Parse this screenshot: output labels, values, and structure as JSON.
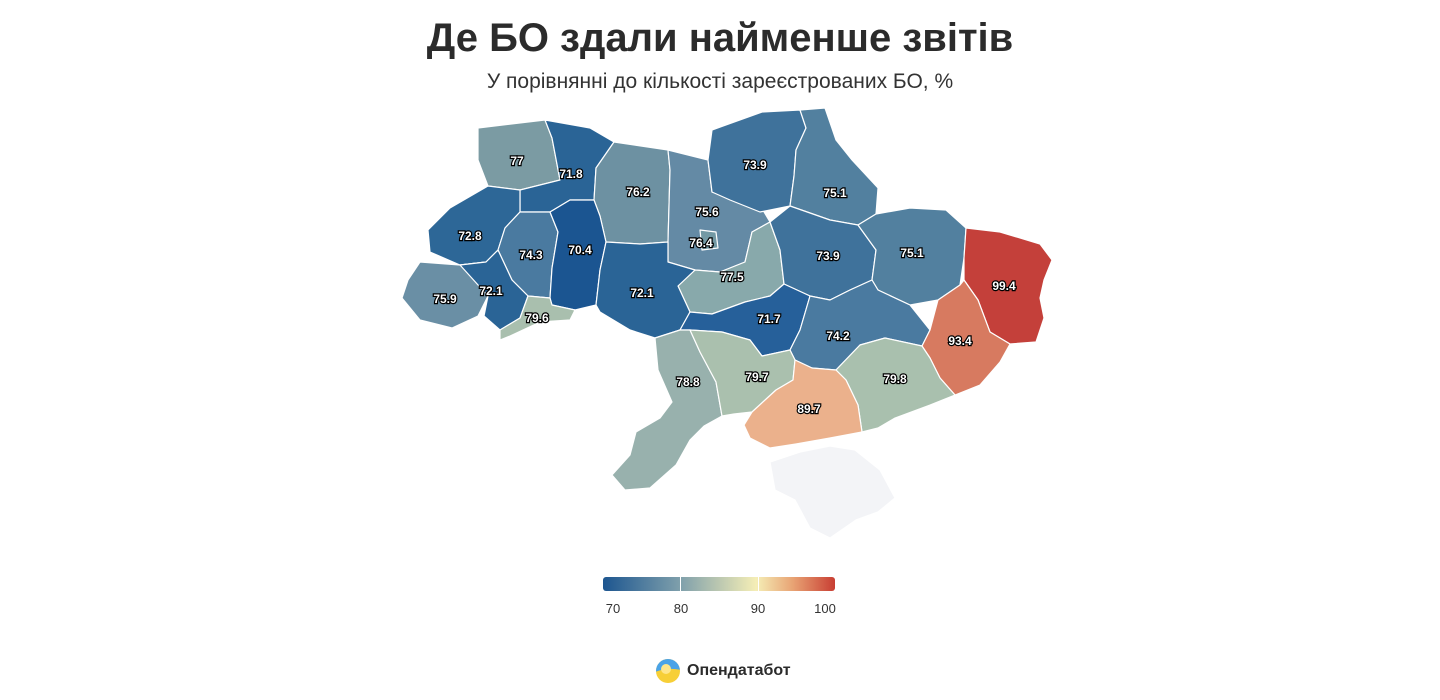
{
  "title": "Де БО здали найменше звітів",
  "subtitle": "У порівнянні до кількості зареєстрованих БО, %",
  "brand": {
    "name": "Опендатабот",
    "logo_icon": "opendatabot-logo-icon"
  },
  "legend": {
    "min": 70,
    "max": 100,
    "ticks": [
      "70",
      "80",
      "90",
      "100"
    ],
    "colors": [
      "#1d5690",
      "#7e9fab",
      "#f5eeb6",
      "#e8a273",
      "#c83e33"
    ]
  },
  "regions": [
    {
      "id": "volyn",
      "value": "77",
      "color": "#7b9ba3"
    },
    {
      "id": "rivne",
      "value": "71.8",
      "color": "#2a6496"
    },
    {
      "id": "zhytomyr",
      "value": "76.2",
      "color": "#6d91a2"
    },
    {
      "id": "kyiv-obl",
      "value": "75.6",
      "color": "#648aa5"
    },
    {
      "id": "kyiv-city",
      "value": "76.4",
      "color": "#7399a4"
    },
    {
      "id": "chernihiv",
      "value": "73.9",
      "color": "#3f729b"
    },
    {
      "id": "sumy",
      "value": "75.1",
      "color": "#52809f"
    },
    {
      "id": "lviv",
      "value": "72.8",
      "color": "#2d6797"
    },
    {
      "id": "ternopil",
      "value": "74.3",
      "color": "#4a7aa0"
    },
    {
      "id": "khmelnytskyi",
      "value": "70.4",
      "color": "#1b5591"
    },
    {
      "id": "cherkasy",
      "value": "77.5",
      "color": "#88a9ab"
    },
    {
      "id": "poltava",
      "value": "73.9",
      "color": "#3f729b"
    },
    {
      "id": "kharkiv",
      "value": "75.1",
      "color": "#52809f"
    },
    {
      "id": "luhansk",
      "value": "99.4",
      "color": "#c4403a"
    },
    {
      "id": "zakarpattia",
      "value": "75.9",
      "color": "#6a8fa5"
    },
    {
      "id": "ivano-frankivsk",
      "value": "72.1",
      "color": "#2a6496"
    },
    {
      "id": "chernivtsi",
      "value": "79.6",
      "color": "#a9bfae"
    },
    {
      "id": "vinnytsia",
      "value": "72.1",
      "color": "#2a6496"
    },
    {
      "id": "kirovohrad",
      "value": "71.7",
      "color": "#26609a"
    },
    {
      "id": "dnipro",
      "value": "74.2",
      "color": "#4a7aa0"
    },
    {
      "id": "donetsk",
      "value": "93.4",
      "color": "#d77a60"
    },
    {
      "id": "odesa",
      "value": "78.8",
      "color": "#98b1ad"
    },
    {
      "id": "mykolaiv",
      "value": "79.7",
      "color": "#aac0ae"
    },
    {
      "id": "zaporizhzhia",
      "value": "79.8",
      "color": "#a9c0ae"
    },
    {
      "id": "kherson",
      "value": "89.7",
      "color": "#ebb18c"
    },
    {
      "id": "crimea",
      "value": "",
      "color": "#f3f4f7"
    }
  ]
}
